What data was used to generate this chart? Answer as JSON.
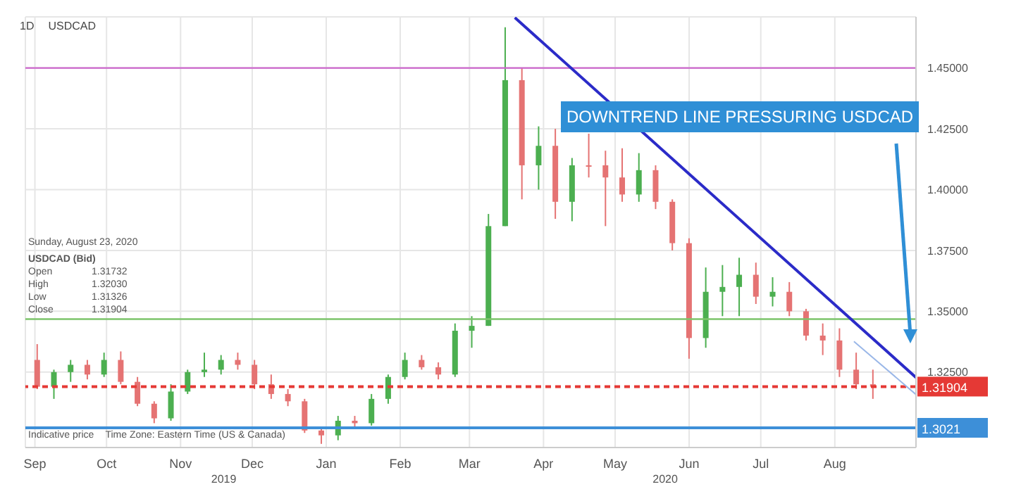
{
  "chart_data": {
    "type": "candlestick",
    "title": "USDCAD",
    "subtitle": "1D",
    "x": [
      "2019-09-02",
      "2019-09-09",
      "2019-09-16",
      "2019-09-23",
      "2019-09-30",
      "2019-10-07",
      "2019-10-14",
      "2019-10-21",
      "2019-10-28",
      "2019-11-04",
      "2019-11-11",
      "2019-11-18",
      "2019-11-25",
      "2019-12-02",
      "2019-12-09",
      "2019-12-16",
      "2019-12-23",
      "2019-12-30",
      "2020-01-06",
      "2020-01-13",
      "2020-01-20",
      "2020-01-27",
      "2020-02-03",
      "2020-02-10",
      "2020-02-17",
      "2020-02-24",
      "2020-03-02",
      "2020-03-09",
      "2020-03-16",
      "2020-03-23",
      "2020-03-30",
      "2020-04-06",
      "2020-04-13",
      "2020-04-20",
      "2020-04-27",
      "2020-05-04",
      "2020-05-11",
      "2020-05-18",
      "2020-05-25",
      "2020-06-01",
      "2020-06-08",
      "2020-06-15",
      "2020-06-22",
      "2020-06-29",
      "2020-07-06",
      "2020-07-13",
      "2020-07-20",
      "2020-07-27",
      "2020-08-03",
      "2020-08-10",
      "2020-08-17"
    ],
    "ohlc": [
      [
        1.33,
        1.3365,
        1.318,
        1.319
      ],
      [
        1.319,
        1.326,
        1.314,
        1.325
      ],
      [
        1.325,
        1.33,
        1.321,
        1.328
      ],
      [
        1.328,
        1.33,
        1.322,
        1.324
      ],
      [
        1.324,
        1.333,
        1.323,
        1.33
      ],
      [
        1.33,
        1.3335,
        1.32,
        1.321
      ],
      [
        1.321,
        1.323,
        1.311,
        1.312
      ],
      [
        1.312,
        1.313,
        1.304,
        1.306
      ],
      [
        1.306,
        1.32,
        1.305,
        1.317
      ],
      [
        1.317,
        1.326,
        1.316,
        1.325
      ],
      [
        1.325,
        1.333,
        1.323,
        1.326
      ],
      [
        1.326,
        1.332,
        1.324,
        1.33
      ],
      [
        1.33,
        1.333,
        1.326,
        1.328
      ],
      [
        1.328,
        1.33,
        1.318,
        1.32
      ],
      [
        1.32,
        1.324,
        1.314,
        1.316
      ],
      [
        1.316,
        1.318,
        1.311,
        1.313
      ],
      [
        1.313,
        1.314,
        1.3,
        1.301
      ],
      [
        1.301,
        1.302,
        1.2955,
        1.299
      ],
      [
        1.299,
        1.307,
        1.297,
        1.305
      ],
      [
        1.305,
        1.307,
        1.302,
        1.304
      ],
      [
        1.304,
        1.316,
        1.303,
        1.314
      ],
      [
        1.314,
        1.324,
        1.312,
        1.323
      ],
      [
        1.323,
        1.333,
        1.322,
        1.33
      ],
      [
        1.33,
        1.332,
        1.326,
        1.327
      ],
      [
        1.327,
        1.329,
        1.322,
        1.324
      ],
      [
        1.324,
        1.345,
        1.323,
        1.342
      ],
      [
        1.342,
        1.348,
        1.335,
        1.344
      ],
      [
        1.344,
        1.39,
        1.344,
        1.385
      ],
      [
        1.385,
        1.4667,
        1.385,
        1.445
      ],
      [
        1.445,
        1.45,
        1.396,
        1.41
      ],
      [
        1.41,
        1.426,
        1.4,
        1.418
      ],
      [
        1.418,
        1.425,
        1.388,
        1.395
      ],
      [
        1.395,
        1.413,
        1.387,
        1.41
      ],
      [
        1.41,
        1.423,
        1.405,
        1.41
      ],
      [
        1.41,
        1.416,
        1.385,
        1.405
      ],
      [
        1.405,
        1.417,
        1.395,
        1.398
      ],
      [
        1.398,
        1.415,
        1.395,
        1.408
      ],
      [
        1.408,
        1.41,
        1.392,
        1.395
      ],
      [
        1.395,
        1.396,
        1.375,
        1.378
      ],
      [
        1.378,
        1.38,
        1.3305,
        1.339
      ],
      [
        1.339,
        1.368,
        1.335,
        1.358
      ],
      [
        1.358,
        1.369,
        1.348,
        1.36
      ],
      [
        1.36,
        1.372,
        1.348,
        1.365
      ],
      [
        1.365,
        1.37,
        1.353,
        1.356
      ],
      [
        1.356,
        1.364,
        1.352,
        1.358
      ],
      [
        1.358,
        1.362,
        1.348,
        1.35
      ],
      [
        1.35,
        1.351,
        1.338,
        1.34
      ],
      [
        1.34,
        1.345,
        1.332,
        1.338
      ],
      [
        1.338,
        1.343,
        1.323,
        1.326
      ],
      [
        1.326,
        1.333,
        1.318,
        1.32
      ],
      [
        1.32,
        1.326,
        1.314,
        1.319
      ]
    ],
    "colors": [
      "#e57373",
      "#4caf50",
      "#4caf50",
      "#e57373",
      "#4caf50",
      "#e57373",
      "#e57373",
      "#e57373",
      "#4caf50",
      "#4caf50",
      "#4caf50",
      "#4caf50",
      "#e57373",
      "#e57373",
      "#e57373",
      "#e57373",
      "#e57373",
      "#e57373",
      "#4caf50",
      "#e57373",
      "#4caf50",
      "#4caf50",
      "#4caf50",
      "#e57373",
      "#e57373",
      "#4caf50",
      "#4caf50",
      "#4caf50",
      "#4caf50",
      "#e57373",
      "#4caf50",
      "#e57373",
      "#4caf50",
      "#e57373",
      "#e57373",
      "#e57373",
      "#4caf50",
      "#e57373",
      "#e57373",
      "#e57373",
      "#4caf50",
      "#4caf50",
      "#4caf50",
      "#e57373",
      "#4caf50",
      "#e57373",
      "#e57373",
      "#e57373",
      "#e57373",
      "#e57373",
      "#e57373"
    ],
    "series": [
      {
        "type": "line",
        "color": "#2b2bc8",
        "x": [
          "2020-03-20",
          "2020-09-04"
        ],
        "values": [
          1.4707,
          1.3228
        ]
      },
      {
        "type": "line",
        "color": "#9ab7e8",
        "x": [
          "2020-08-09",
          "2020-09-04"
        ],
        "values": [
          1.3376,
          1.3158
        ]
      }
    ],
    "xlim": [
      "2019-08-28",
      "2020-09-04"
    ],
    "xticks": [
      {
        "value": "2019-09-01",
        "label": "Sep"
      },
      {
        "value": "2019-10-01",
        "label": "Oct"
      },
      {
        "value": "2019-11-01",
        "label": "Nov"
      },
      {
        "value": "2019-12-01",
        "label": "Dec"
      },
      {
        "value": "2020-01-01",
        "label": "Jan"
      },
      {
        "value": "2020-02-01",
        "label": "Feb"
      },
      {
        "value": "2020-03-01",
        "label": "Mar"
      },
      {
        "value": "2020-04-01",
        "label": "Apr"
      },
      {
        "value": "2020-05-01",
        "label": "May"
      },
      {
        "value": "2020-06-01",
        "label": "Jun"
      },
      {
        "value": "2020-07-01",
        "label": "Jul"
      },
      {
        "value": "2020-08-01",
        "label": "Aug"
      }
    ],
    "ylim": [
      1.294,
      1.471
    ],
    "yticks": [
      {
        "value": 1.325,
        "label": "1.32500"
      },
      {
        "value": 1.35,
        "label": "1.35000"
      },
      {
        "value": 1.375,
        "label": "1.37500"
      },
      {
        "value": 1.4,
        "label": "1.40000"
      },
      {
        "value": 1.425,
        "label": "1.42500"
      },
      {
        "value": 1.45,
        "label": "1.45000"
      }
    ],
    "ref_lines": [
      {
        "axis": "y",
        "value": 1.45,
        "color": "#cc66cc"
      },
      {
        "axis": "y",
        "value": 1.3468,
        "color": "#7cc46b"
      },
      {
        "axis": "y",
        "value": 1.31904,
        "label": "1.31904",
        "color": "#e53935",
        "line_style": "dashed"
      },
      {
        "axis": "y",
        "value": 1.3021,
        "label": "1.3021",
        "color": "#3d8fd8"
      }
    ],
    "annotations": [
      "Sunday, August 23, 2020",
      "USDCAD (Bid)",
      "Open 1.31732",
      "High 1.32030",
      "Low 1.31326",
      "Close 1.31904",
      "Indicative price",
      "Time Zone: Eastern Time (US & Canada)",
      "2019",
      "2020",
      "DOWNTREND LINE PRESSURING USDCAD"
    ],
    "grid": true,
    "marker": "none",
    "line_style": "solid"
  }
}
